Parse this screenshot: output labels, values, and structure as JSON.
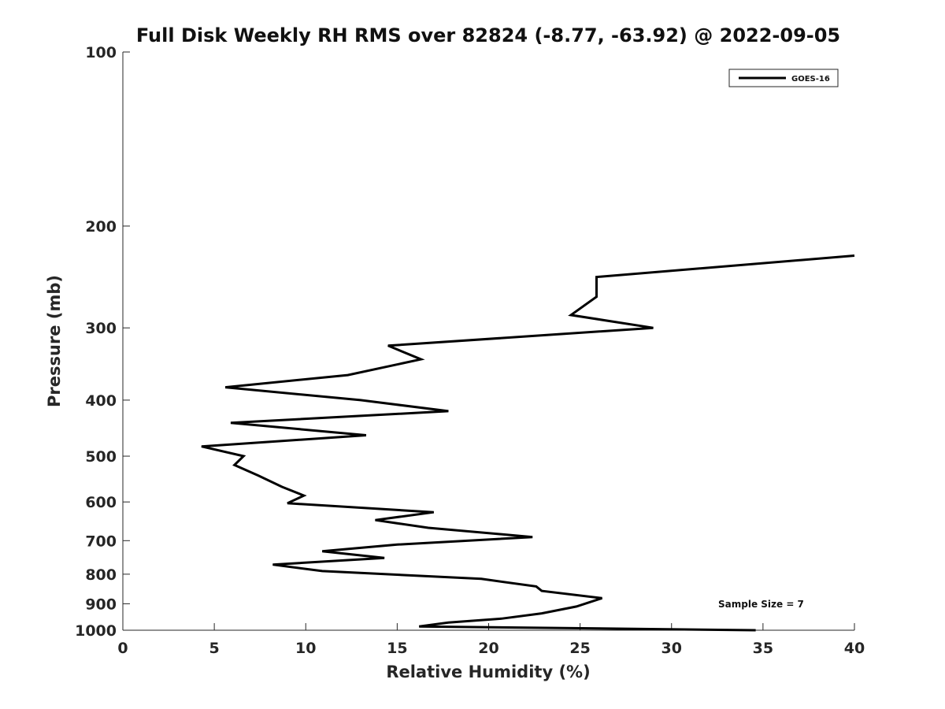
{
  "chart_data": {
    "type": "line",
    "title": "Full Disk Weekly RH RMS over 82824 (-8.77, -63.92) @ 2022-09-05",
    "xlabel": "Relative Humidity (%)",
    "ylabel": "Pressure (mb)",
    "xlim": [
      0,
      40
    ],
    "ylim": [
      1000,
      100
    ],
    "yscale": "log",
    "x_ticks": [
      "0",
      "5",
      "10",
      "15",
      "20",
      "25",
      "30",
      "35",
      "40"
    ],
    "y_ticks": [
      "100",
      "200",
      "300",
      "400",
      "500",
      "600",
      "700",
      "800",
      "900",
      "1000"
    ],
    "grid": false,
    "legend_position": "top-right",
    "annotation": "Sample Size = 7",
    "series": [
      {
        "name": "GOES-16",
        "color": "#000000",
        "points": [
          [
            40.0,
            225
          ],
          [
            25.9,
            245
          ],
          [
            25.9,
            265
          ],
          [
            24.5,
            285
          ],
          [
            29.0,
            300
          ],
          [
            14.5,
            322
          ],
          [
            16.3,
            340
          ],
          [
            12.3,
            362
          ],
          [
            5.6,
            380
          ],
          [
            13.0,
            400
          ],
          [
            17.8,
            418
          ],
          [
            5.9,
            438
          ],
          [
            13.3,
            460
          ],
          [
            4.3,
            481
          ],
          [
            6.6,
            500
          ],
          [
            6.1,
            518
          ],
          [
            7.4,
            540
          ],
          [
            8.7,
            565
          ],
          [
            9.9,
            585
          ],
          [
            9.0,
            603
          ],
          [
            17.0,
            625
          ],
          [
            13.8,
            645
          ],
          [
            16.7,
            665
          ],
          [
            22.4,
            690
          ],
          [
            15.0,
            711
          ],
          [
            10.9,
            730
          ],
          [
            14.3,
            750
          ],
          [
            8.2,
            770
          ],
          [
            10.9,
            790
          ],
          [
            19.6,
            815
          ],
          [
            22.6,
            840
          ],
          [
            22.9,
            855
          ],
          [
            26.2,
            880
          ],
          [
            24.8,
            910
          ],
          [
            22.9,
            935
          ],
          [
            20.7,
            955
          ],
          [
            17.8,
            970
          ],
          [
            16.2,
            985
          ],
          [
            34.6,
            1000
          ]
        ]
      }
    ]
  }
}
